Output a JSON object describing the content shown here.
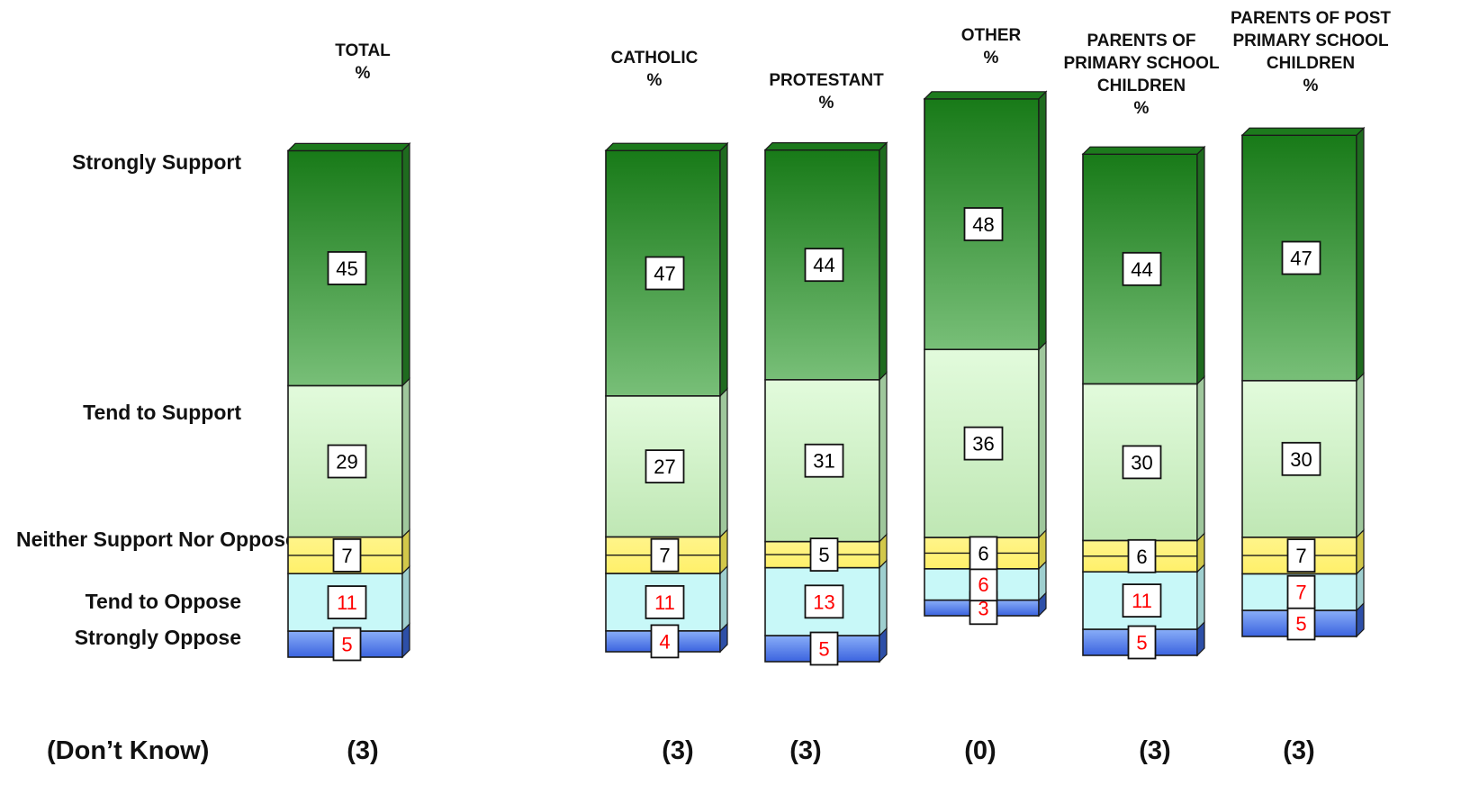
{
  "chart_data": {
    "type": "bar",
    "stacked": true,
    "categories": [
      "TOTAL %",
      "CATHOLIC %",
      "PROTESTANT %",
      "OTHER %",
      "PARENTS OF PRIMARY SCHOOL CHILDREN %",
      "PARENTS OF POST PRIMARY SCHOOL CHILDREN %"
    ],
    "category_header_lines": [
      [
        "TOTAL",
        "%"
      ],
      [
        "CATHOLIC",
        "%"
      ],
      [
        "PROTESTANT",
        "%"
      ],
      [
        "OTHER",
        "%"
      ],
      [
        "PARENTS OF",
        "PRIMARY SCHOOL",
        "CHILDREN",
        "%"
      ],
      [
        "PARENTS OF POST",
        "PRIMARY SCHOOL",
        "CHILDREN",
        "%"
      ]
    ],
    "series": [
      {
        "name": "Strongly Support",
        "values": [
          45,
          47,
          44,
          48,
          44,
          47
        ],
        "color": "#2e8b2e"
      },
      {
        "name": "Tend to Support",
        "values": [
          29,
          27,
          31,
          36,
          30,
          30
        ],
        "color": "#c6f5c0"
      },
      {
        "name": "Neither Support Nor Oppose",
        "values": [
          7,
          7,
          5,
          6,
          6,
          7
        ],
        "color": "#fff176"
      },
      {
        "name": "Tend to Oppose",
        "values": [
          11,
          11,
          13,
          6,
          11,
          7
        ],
        "color": "#c9f7f7"
      },
      {
        "name": "Strongly Oppose",
        "values": [
          5,
          4,
          5,
          3,
          5,
          5
        ],
        "color": "#5a82ea"
      }
    ],
    "dont_know_label": "(Don’t Know)",
    "dont_know_values": [
      "(3)",
      "(3)",
      "(3)",
      "(0)",
      "(3)",
      "(3)"
    ],
    "value_label_colors": {
      "support_side": "#000000",
      "oppose_side": "#ff0000"
    }
  }
}
